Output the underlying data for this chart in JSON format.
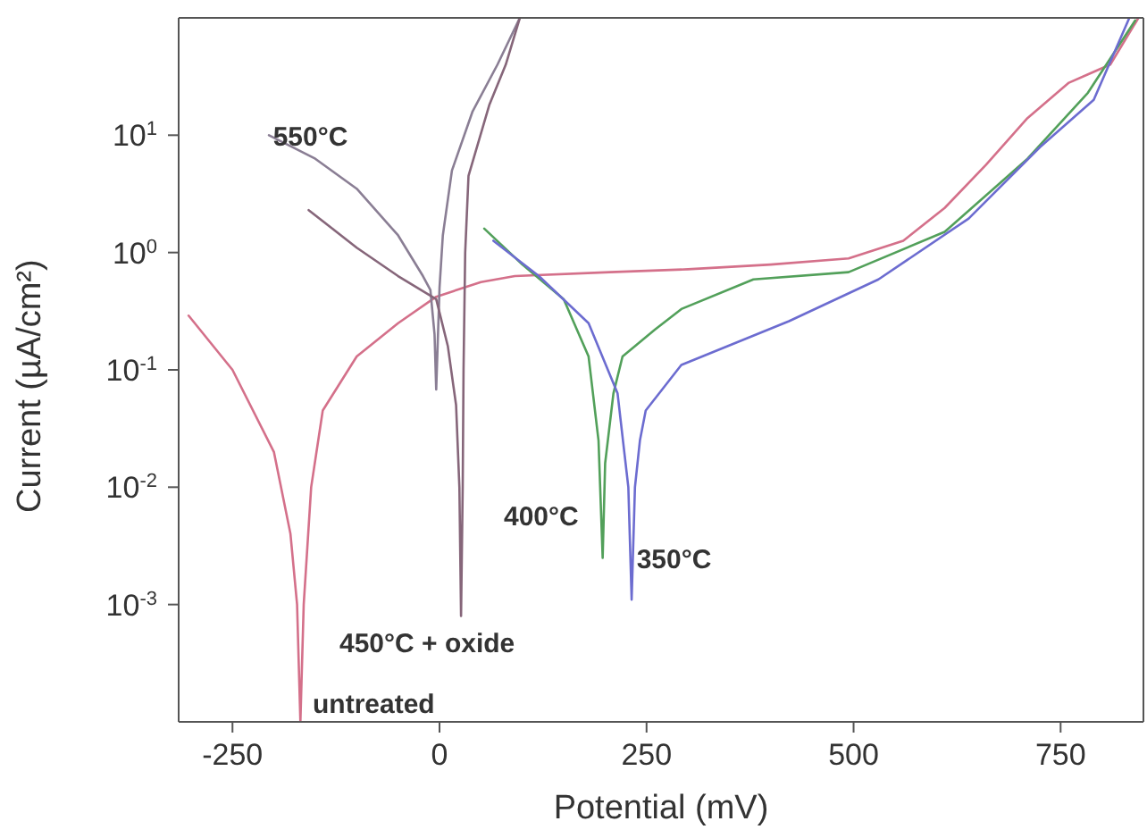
{
  "chart_data": {
    "type": "line",
    "xlabel": "Potential (mV)",
    "ylabel": "Current (µA/cm²)",
    "log": "y",
    "marker": "none",
    "xlim": [
      -315,
      850
    ],
    "xticks": [
      -250,
      0,
      250,
      500,
      750
    ],
    "ylim": [
      0.0001,
      100
    ],
    "yticks": [
      {
        "value": 0.001,
        "label": "10$^{-3}$"
      },
      {
        "value": 0.01,
        "label": "10$^{-2}$"
      },
      {
        "value": 0.1,
        "label": "10$^{-1}$"
      },
      {
        "value": 1,
        "label": "10$^{0}$"
      },
      {
        "value": 10,
        "label": "10$^{1}$"
      }
    ],
    "series": [
      {
        "color": "#d4708a",
        "x": [
          -303,
          -250,
          -200,
          -180,
          -172,
          -168,
          -164,
          -155,
          -141,
          -100,
          -50,
          -4,
          50,
          91,
          206,
          300,
          400,
          494,
          560,
          610,
          660,
          710,
          760,
          783,
          810,
          844
        ],
        "values": [
          0.29,
          0.1,
          0.02,
          0.004,
          0.001,
          0.0001,
          0.001,
          0.01,
          0.045,
          0.13,
          0.25,
          0.42,
          0.56,
          0.63,
          0.68,
          0.72,
          0.79,
          0.89,
          1.26,
          2.4,
          5.6,
          14,
          28,
          33,
          40,
          100
        ]
      },
      {
        "color": "#8a7e94",
        "x": [
          -206,
          -150,
          -100,
          -50,
          -20,
          -11,
          -6,
          -4,
          0,
          4,
          15,
          40,
          70,
          97
        ],
        "values": [
          10,
          6.3,
          3.5,
          1.4,
          0.63,
          0.48,
          0.2,
          0.068,
          0.5,
          1.4,
          5,
          16,
          40,
          100
        ]
      },
      {
        "color": "#86667a",
        "x": [
          -158,
          -100,
          -50,
          -4,
          10,
          20,
          24,
          26,
          28,
          29,
          31,
          35,
          60,
          80,
          97
        ],
        "values": [
          2.3,
          1.1,
          0.63,
          0.4,
          0.16,
          0.05,
          0.01,
          0.0008,
          0.01,
          0.1,
          1,
          4.5,
          18,
          40,
          100
        ]
      },
      {
        "color": "#52a05a",
        "x": [
          54,
          100,
          150,
          180,
          192,
          197,
          200,
          210,
          221,
          260,
          292,
          379,
          494,
          610,
          710,
          783,
          840
        ],
        "values": [
          1.6,
          0.79,
          0.4,
          0.13,
          0.025,
          0.0025,
          0.016,
          0.063,
          0.13,
          0.22,
          0.33,
          0.59,
          0.68,
          1.5,
          6.3,
          23,
          95
        ]
      },
      {
        "color": "#6c6cd0",
        "x": [
          65,
          120,
          180,
          215,
          228,
          232,
          236,
          242,
          249,
          292,
          422,
          530,
          639,
          725,
          790,
          833
        ],
        "values": [
          1.26,
          0.63,
          0.25,
          0.063,
          0.01,
          0.0011,
          0.01,
          0.025,
          0.045,
          0.11,
          0.26,
          0.59,
          1.95,
          7.9,
          20,
          100
        ]
      }
    ],
    "annotations": [
      {
        "text": "550°C",
        "x": -201,
        "y": 10
      },
      "400°C",
      {
        "text": "350°C",
        "x": 238,
        "y": 0.0025
      },
      "450°C + oxide",
      "untreated"
    ]
  }
}
